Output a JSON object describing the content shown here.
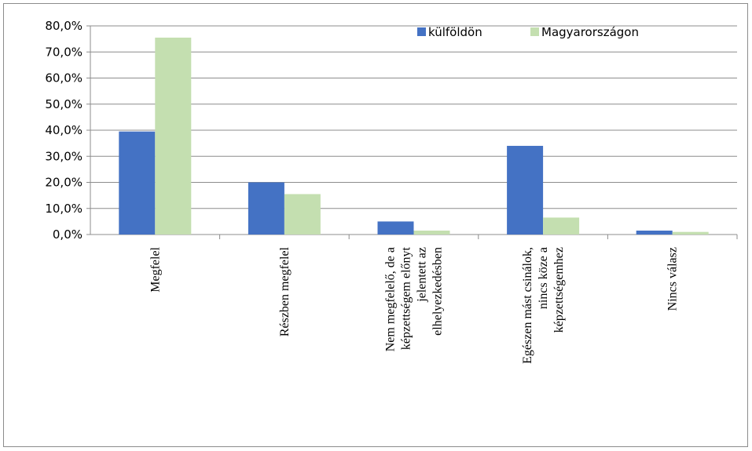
{
  "chart_data": {
    "type": "bar",
    "title": "",
    "xlabel": "",
    "ylabel": "",
    "ylim": [
      0,
      80
    ],
    "y_ticks": [
      "0,0%",
      "10,0%",
      "20,0%",
      "30,0%",
      "40,0%",
      "50,0%",
      "60,0%",
      "70,0%",
      "80,0%"
    ],
    "grid": true,
    "legend_position": "top-right",
    "categories": [
      [
        "Megfelel"
      ],
      [
        "Részben megfelel"
      ],
      [
        "Nem megfelelő, de a",
        "képzettségem előnyt",
        "jelentett az",
        "elhelyezkedésben"
      ],
      [
        "Egészen mást csinálok,",
        "nincs köze a",
        "képzettségemhez"
      ],
      [
        "Nincs válasz"
      ]
    ],
    "series": [
      {
        "name": "külföldön",
        "color": "#4472c4",
        "values": [
          39.5,
          20.0,
          5.0,
          34.0,
          1.5
        ]
      },
      {
        "name": "Magyarországon",
        "color": "#c4dfb0",
        "values": [
          75.5,
          15.5,
          1.5,
          6.5,
          1.0
        ]
      }
    ]
  }
}
